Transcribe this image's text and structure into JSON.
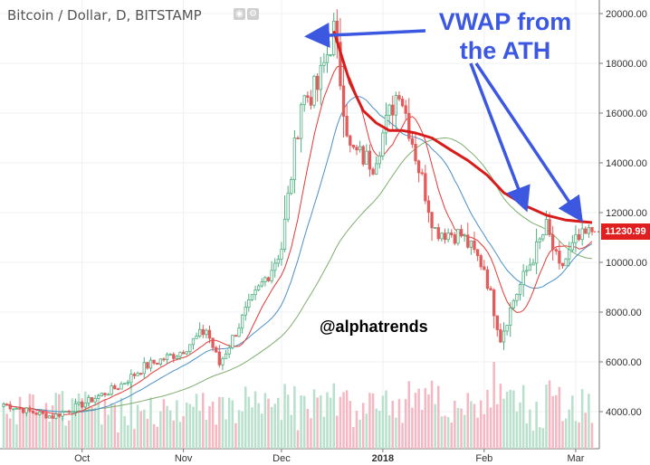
{
  "header": {
    "title": "Bitcoin / Dollar, D, BITSTAMP",
    "dropdown_icon": "caret-down-icon",
    "icons": [
      "eye-icon",
      "gear-icon"
    ]
  },
  "annotation": {
    "line1": "VWAP from",
    "line2": "the ATH",
    "color": "#3c57e0"
  },
  "watermark": "@alphatrends",
  "last_price": "11230.99",
  "colors": {
    "up": "#4caf7f",
    "down": "#e35b5b",
    "vwap": "#d81b1b",
    "ma_short": "#e53935",
    "ma_mid": "#4a90c8",
    "ma_long": "#7fae6e",
    "vol_up": "#b8e0cc",
    "vol_down": "#f5b8c2",
    "arrow": "#3c57e0"
  },
  "chart_data": {
    "type": "candlestick",
    "y_axis": {
      "ticks": [
        4000,
        6000,
        8000,
        10000,
        12000,
        14000,
        16000,
        18000,
        20000
      ],
      "tick_labels": [
        "4000.00",
        "6000.00",
        "8000.00",
        "10000.00",
        "12000.00",
        "14000.00",
        "16000.00",
        "18000.00",
        "20000.00"
      ],
      "range": [
        2600,
        20400
      ],
      "position": "right"
    },
    "x_axis": {
      "labels": [
        "Oct",
        "Nov",
        "Dec",
        "2018",
        "Feb",
        "Mar"
      ],
      "label_dates": [
        "2017-10-01",
        "2017-11-01",
        "2017-12-01",
        "2018-01-01",
        "2018-02-01",
        "2018-03-01"
      ],
      "range": [
        "2017-09-07",
        "2018-03-06"
      ]
    },
    "series": [
      {
        "role": "price",
        "anchors_date": [
          "2017-09-07",
          "2017-09-15",
          "2017-09-22",
          "2017-10-01",
          "2017-10-12",
          "2017-10-20",
          "2017-10-31",
          "2017-11-08",
          "2017-11-12",
          "2017-11-20",
          "2017-11-28",
          "2017-12-01",
          "2017-12-07",
          "2017-12-12",
          "2017-12-17",
          "2017-12-22",
          "2017-12-29",
          "2018-01-06",
          "2018-01-12",
          "2018-01-17",
          "2018-01-25",
          "2018-02-01",
          "2018-02-06",
          "2018-02-10",
          "2018-02-20",
          "2018-02-24",
          "2018-03-01",
          "2018-03-06"
        ],
        "anchors_close": [
          4300,
          4000,
          3800,
          4300,
          5000,
          5800,
          6400,
          7300,
          5900,
          8000,
          9800,
          10600,
          16500,
          17000,
          19300,
          14500,
          14000,
          17100,
          13800,
          11300,
          11100,
          9800,
          6950,
          8500,
          11400,
          9700,
          10800,
          11230
        ]
      },
      {
        "role": "vwap_from_ath",
        "x_dates": [
          "2017-12-17",
          "2017-12-22",
          "2017-12-26",
          "2017-12-30",
          "2018-01-03",
          "2018-01-07",
          "2018-01-11",
          "2018-01-16",
          "2018-01-22",
          "2018-01-27",
          "2018-02-02",
          "2018-02-07",
          "2018-02-14",
          "2018-02-20",
          "2018-02-26",
          "2018-03-06"
        ],
        "values": [
          19300,
          17200,
          16100,
          15600,
          15300,
          15300,
          15200,
          15000,
          14500,
          14100,
          13500,
          12800,
          12250,
          11900,
          11700,
          11600
        ]
      }
    ],
    "grid": true
  }
}
